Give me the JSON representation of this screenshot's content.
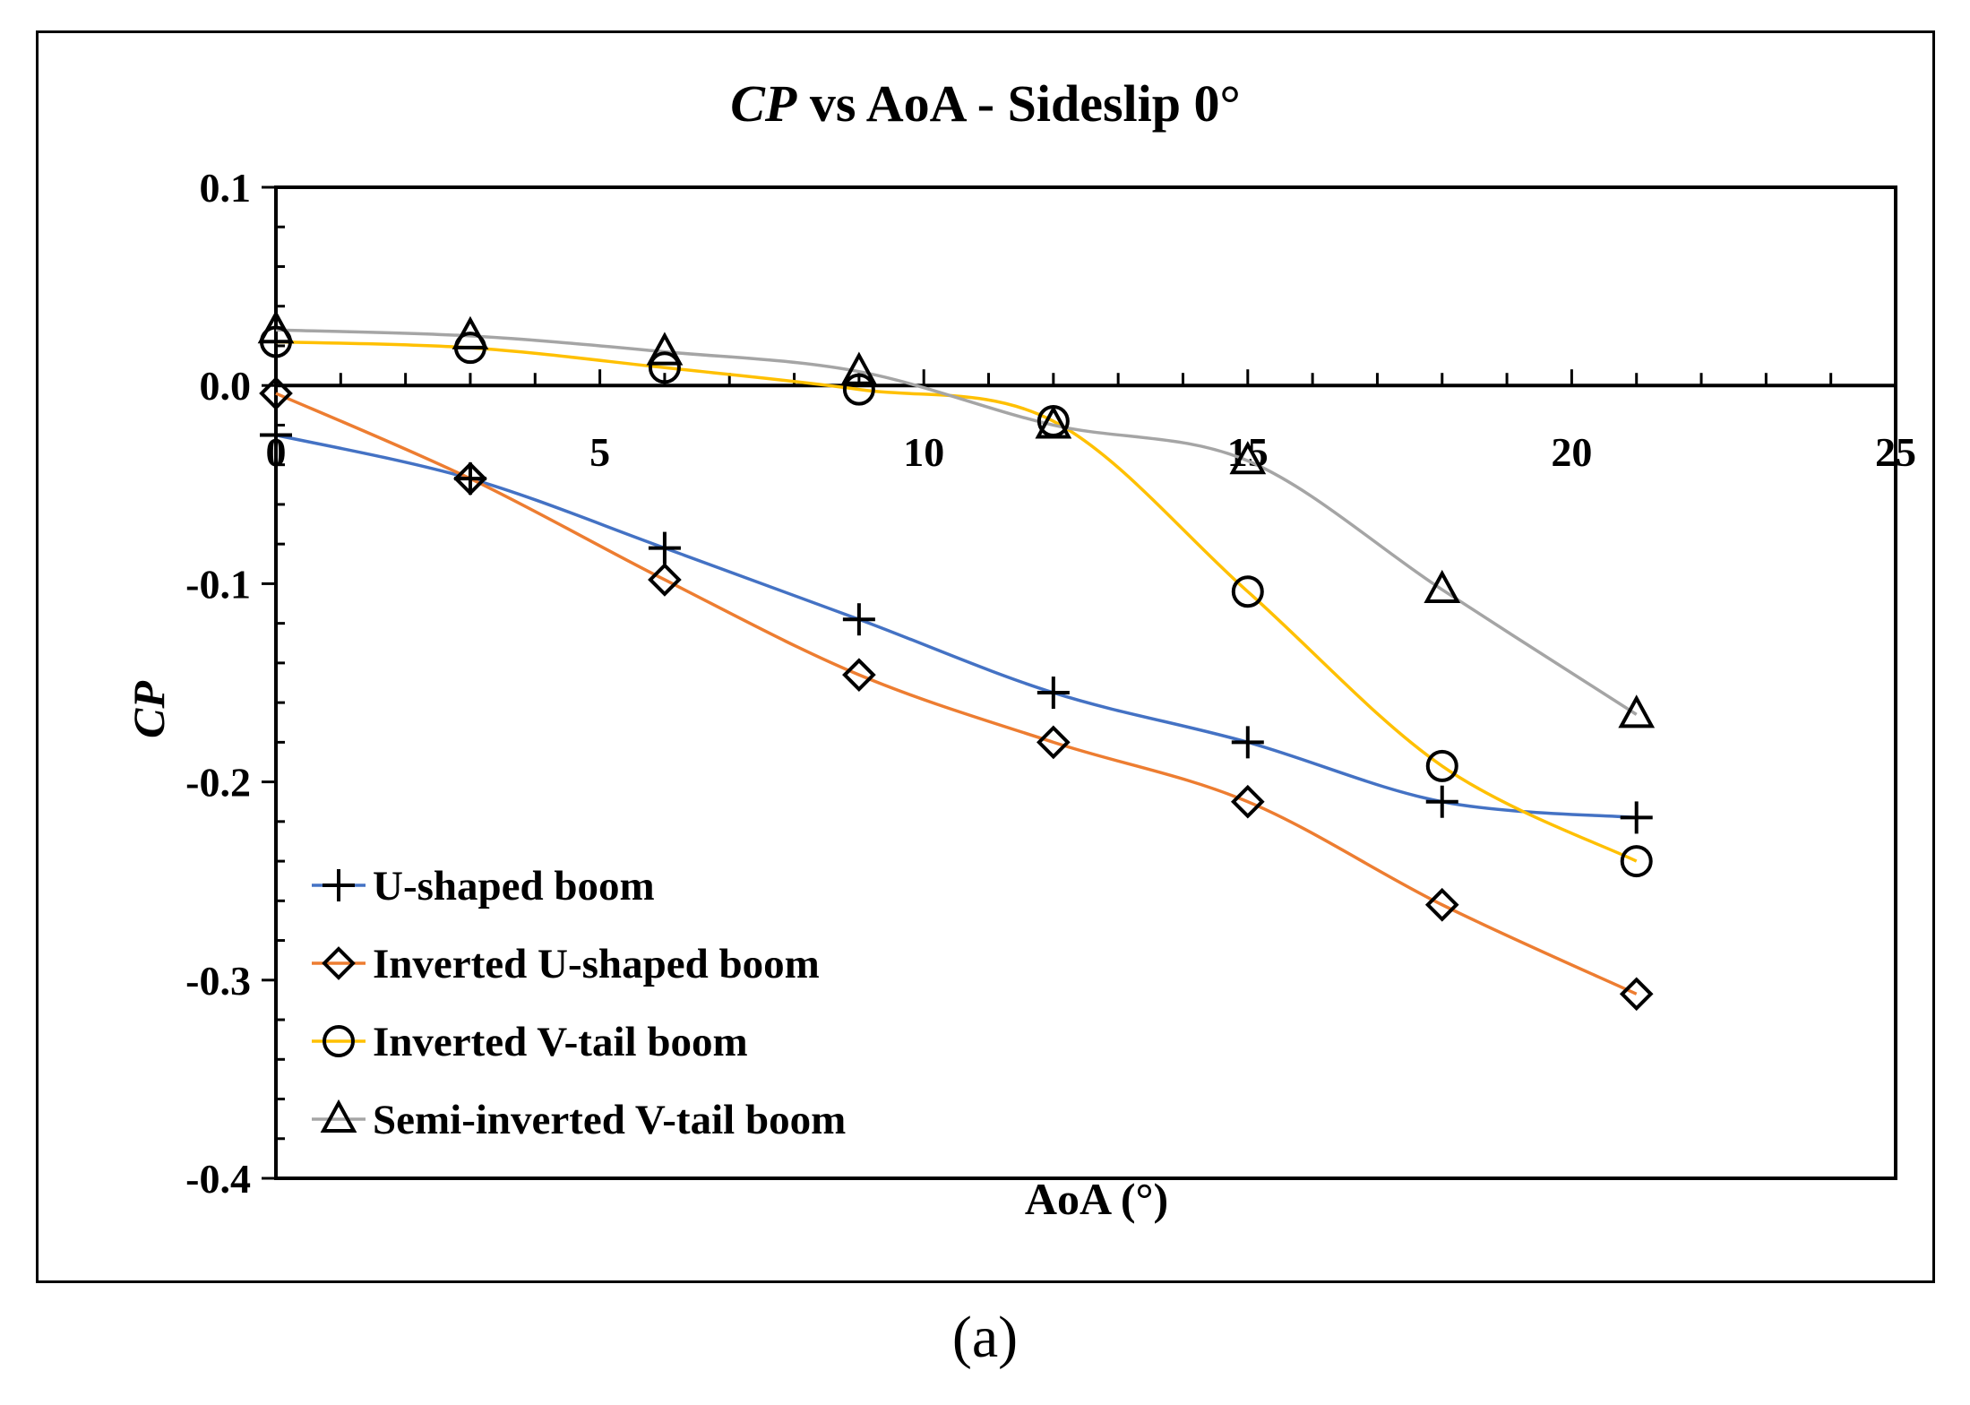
{
  "chart_data": {
    "type": "line",
    "title": "CP vs AoA - Sideslip 0°",
    "title_italic_part": "CP",
    "title_rest": " vs AoA - Sideslip 0°",
    "xlabel": "AoA (°)",
    "ylabel": "CP",
    "xlim": [
      0,
      25
    ],
    "ylim": [
      -0.4,
      0.1
    ],
    "xticks": [
      0,
      5,
      10,
      15,
      20,
      25
    ],
    "xtick_labels": [
      "0",
      "5",
      "10",
      "15",
      "20",
      "25"
    ],
    "yticks": [
      0.1,
      0.0,
      -0.1,
      -0.2,
      -0.3,
      -0.4
    ],
    "ytick_labels": [
      "0.1",
      "0.0",
      "-0.1",
      "-0.2",
      "-0.3",
      "-0.4"
    ],
    "legend_position": "bottom-left",
    "series": [
      {
        "name": "U-shaped boom",
        "color": "#4472C4",
        "marker": "plus",
        "x": [
          0,
          3,
          6,
          9,
          12,
          15,
          18,
          21
        ],
        "y": [
          -0.025,
          -0.047,
          -0.082,
          -0.118,
          -0.155,
          -0.18,
          -0.21,
          -0.218
        ]
      },
      {
        "name": "Inverted U-shaped boom",
        "color": "#ED7D31",
        "marker": "diamond",
        "x": [
          0,
          3,
          6,
          9,
          12,
          15,
          18,
          21
        ],
        "y": [
          -0.004,
          -0.047,
          -0.098,
          -0.146,
          -0.18,
          -0.21,
          -0.262,
          -0.307
        ]
      },
      {
        "name": "Inverted V-tail boom",
        "color": "#FFC000",
        "marker": "circle",
        "x": [
          0,
          3,
          6,
          9,
          12,
          15,
          18,
          21
        ],
        "y": [
          0.022,
          0.019,
          0.009,
          -0.002,
          -0.018,
          -0.104,
          -0.192,
          -0.24
        ]
      },
      {
        "name": "Semi-inverted V-tail boom",
        "color": "#A5A5A5",
        "marker": "triangle",
        "x": [
          0,
          3,
          6,
          9,
          12,
          15,
          18,
          21
        ],
        "y": [
          0.028,
          0.025,
          0.017,
          0.007,
          -0.02,
          -0.038,
          -0.103,
          -0.166
        ]
      }
    ]
  },
  "caption": "(a)"
}
